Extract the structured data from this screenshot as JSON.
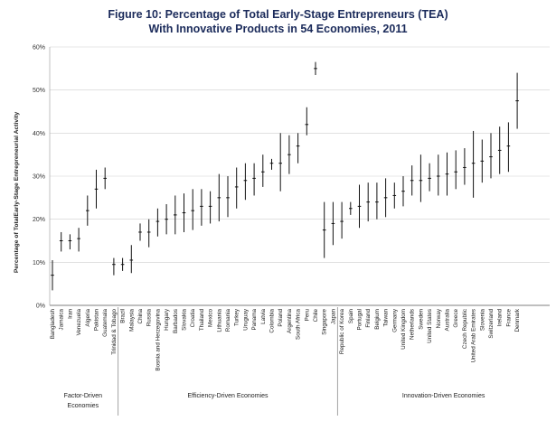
{
  "chart_data": {
    "type": "error-bar",
    "title": "Figure 10: Percentage of Total Early-Stage Entrepreneurs (TEA)",
    "subtitle": "With Innovative Products in 54 Economies, 2011",
    "ylabel": "Percentage of TotalEarly-Stage  Entrepreneurial Activity",
    "ylim": [
      0,
      60
    ],
    "yticks": [
      "0%",
      "10%",
      "20%",
      "30%",
      "40%",
      "50%",
      "60%"
    ],
    "grid": true,
    "groups": [
      {
        "label_lines": [
          "Factor-Driven",
          "Economies"
        ],
        "start": 0,
        "end": 7
      },
      {
        "label_lines": [
          "Efficiency-Driven Economies"
        ],
        "start": 8,
        "end": 32
      },
      {
        "label_lines": [
          "Innovation-Driven Economies"
        ],
        "start": 33,
        "end": 53
      }
    ],
    "categories": [
      "Bangladesh",
      "Jamaica",
      "Iran",
      "Venezuela",
      "Algeria",
      "Pakistan",
      "Guatemala",
      "Trinidad & Tobago",
      "Brazil",
      "Malaysia",
      "China",
      "Russia",
      "Bosnia and Herzegovina",
      "Hungary",
      "Barbados",
      "Slovakia",
      "Croatia",
      "Thailand",
      "Mexico",
      "Lithuania",
      "Romania",
      "Turkey",
      "Uruguay",
      "Panama",
      "Latvia",
      "Colombia",
      "Poland",
      "Argentina",
      "South Africa",
      "Peru",
      "Chile",
      "Singapore",
      "Japan",
      "Republic of Korea",
      "Spain",
      "Portugal",
      "Finland",
      "Belgium",
      "Taiwan",
      "Germany",
      "United Kingdom",
      "Netherlands",
      "Sweden",
      "United States",
      "Norway",
      "Australia",
      "Greece",
      "Czech Republic",
      "United Arab Emirates",
      "Slovenia",
      "Switzerland",
      "Ireland",
      "France",
      "Denmark"
    ],
    "series": [
      {
        "name": "Estimate",
        "values": [
          7,
          15,
          15,
          15.5,
          22,
          27,
          29.5,
          9.5,
          9.5,
          10.5,
          17,
          17,
          19.5,
          20,
          21,
          21.5,
          22,
          23,
          23,
          25,
          25,
          27.5,
          29,
          29.5,
          31,
          33,
          33,
          35,
          37,
          42,
          55,
          17.5,
          19,
          19.5,
          22.5,
          23,
          24,
          24,
          25,
          25.5,
          26.5,
          29,
          29,
          29.5,
          30,
          30.5,
          31,
          32,
          33,
          33.5,
          34.5,
          36,
          37,
          47.5
        ]
      },
      {
        "name": "Lower",
        "values": [
          3.5,
          12.5,
          13,
          12.5,
          18.5,
          22.5,
          27,
          7,
          8,
          7.5,
          15,
          13.5,
          16,
          16.5,
          16.5,
          17,
          17.5,
          18.5,
          19,
          19.5,
          20.5,
          22.5,
          24.5,
          25.5,
          27.5,
          31.5,
          26.5,
          30.5,
          33,
          39.5,
          53.5,
          11,
          14,
          15.5,
          21,
          18,
          19.5,
          20,
          20.5,
          22.5,
          23,
          25.5,
          24,
          26.5,
          25.5,
          25.5,
          27,
          28,
          25,
          28.5,
          29.5,
          30.5,
          31,
          41
        ]
      },
      {
        "name": "Upper",
        "values": [
          10.5,
          17,
          16.5,
          18,
          25.5,
          31.5,
          32,
          11,
          11,
          14,
          19,
          20,
          22.5,
          23.5,
          25.5,
          26,
          27,
          27,
          26.5,
          30.5,
          30,
          32,
          33,
          33,
          35,
          34,
          40,
          39.5,
          40,
          46,
          56.5,
          24,
          24,
          24,
          24,
          28,
          28.5,
          28.5,
          29.5,
          28.5,
          30,
          32.5,
          35,
          33,
          35,
          35.5,
          36,
          36.5,
          40.5,
          38.5,
          40,
          41.5,
          42.5,
          54
        ]
      }
    ]
  }
}
